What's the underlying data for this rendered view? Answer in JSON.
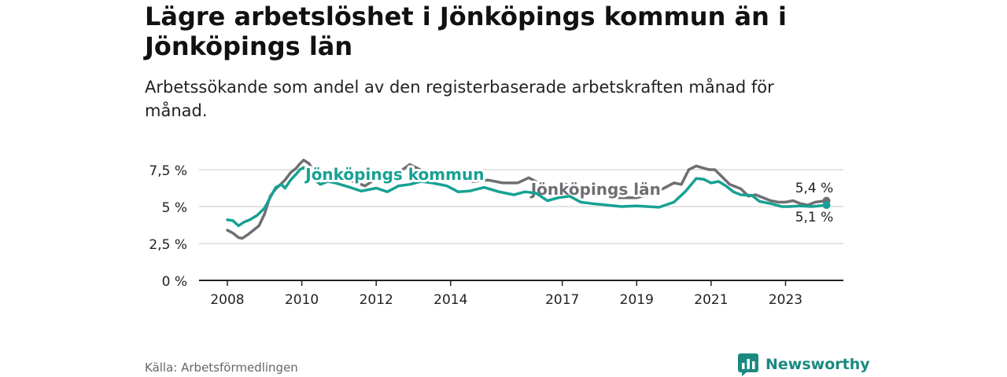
{
  "title": "Lägre arbetslöshet i Jönköpings kommun än i Jönköpings län",
  "subtitle": "Arbetssökande som andel av den registerbaserade arbetskraften månad för månad.",
  "source": "Källa: Arbetsförmedlingen",
  "brand": {
    "name": "Newsworthy",
    "icon": "newsworthy-logo-icon",
    "color": "#1a8a80"
  },
  "chart_data": {
    "type": "line",
    "title": "Lägre arbetslöshet i Jönköpings kommun än i Jönköpings län",
    "xlabel": "",
    "ylabel": "",
    "xlim": [
      2008,
      2024.7
    ],
    "ylim": [
      0,
      7.5
    ],
    "y_ticks": [
      0,
      2.5,
      5,
      7.5
    ],
    "y_tick_labels": [
      "0 %",
      "2,5 %",
      "5 %",
      "7,5 %"
    ],
    "x_ticks": [
      2008,
      2010,
      2012,
      2014,
      2017,
      2019,
      2021,
      2023
    ],
    "x_tick_labels": [
      "2008",
      "2010",
      "2012",
      "2014",
      "2017",
      "2019",
      "2021",
      "2023"
    ],
    "grid": true,
    "series": [
      {
        "name": "Jönköpings län",
        "color": "#6f6f73",
        "label_position": [
          2017.9,
          5.8
        ],
        "points": [
          [
            2008.0,
            3.4
          ],
          [
            2008.15,
            3.2
          ],
          [
            2008.3,
            2.9
          ],
          [
            2008.4,
            2.85
          ],
          [
            2008.55,
            3.1
          ],
          [
            2008.7,
            3.4
          ],
          [
            2008.85,
            3.7
          ],
          [
            2009.0,
            4.5
          ],
          [
            2009.15,
            5.7
          ],
          [
            2009.3,
            6.2
          ],
          [
            2009.45,
            6.55
          ],
          [
            2009.55,
            6.8
          ],
          [
            2009.7,
            7.3
          ],
          [
            2009.85,
            7.6
          ],
          [
            2009.95,
            7.9
          ],
          [
            2010.05,
            8.15
          ],
          [
            2010.2,
            7.9
          ],
          [
            2010.35,
            7.2
          ],
          [
            2010.5,
            6.8
          ],
          [
            2010.6,
            7.2
          ],
          [
            2010.75,
            7.0
          ],
          [
            2010.9,
            6.8
          ],
          [
            2011.1,
            6.9
          ],
          [
            2011.4,
            6.7
          ],
          [
            2011.7,
            6.4
          ],
          [
            2012.0,
            6.9
          ],
          [
            2012.3,
            7.0
          ],
          [
            2012.6,
            7.3
          ],
          [
            2012.9,
            7.85
          ],
          [
            2013.1,
            7.6
          ],
          [
            2013.4,
            7.2
          ],
          [
            2013.7,
            7.2
          ],
          [
            2014.0,
            7.4
          ],
          [
            2014.3,
            6.9
          ],
          [
            2014.6,
            6.7
          ],
          [
            2015.0,
            6.8
          ],
          [
            2015.4,
            6.6
          ],
          [
            2015.8,
            6.6
          ],
          [
            2016.1,
            6.95
          ],
          [
            2016.4,
            6.55
          ],
          [
            2016.6,
            6.0
          ],
          [
            2016.8,
            6.3
          ],
          [
            2017.0,
            6.6
          ],
          [
            2017.3,
            6.3
          ],
          [
            2017.6,
            6.1
          ],
          [
            2018.0,
            5.9
          ],
          [
            2018.5,
            5.6
          ],
          [
            2019.0,
            5.6
          ],
          [
            2019.4,
            5.85
          ],
          [
            2019.7,
            6.2
          ],
          [
            2020.0,
            6.6
          ],
          [
            2020.2,
            6.5
          ],
          [
            2020.4,
            7.5
          ],
          [
            2020.6,
            7.75
          ],
          [
            2020.8,
            7.6
          ],
          [
            2020.95,
            7.5
          ],
          [
            2021.1,
            7.5
          ],
          [
            2021.3,
            7.0
          ],
          [
            2021.5,
            6.5
          ],
          [
            2021.8,
            6.2
          ],
          [
            2022.0,
            5.7
          ],
          [
            2022.2,
            5.8
          ],
          [
            2022.4,
            5.6
          ],
          [
            2022.6,
            5.4
          ],
          [
            2022.8,
            5.3
          ],
          [
            2023.0,
            5.3
          ],
          [
            2023.2,
            5.4
          ],
          [
            2023.4,
            5.2
          ],
          [
            2023.6,
            5.1
          ],
          [
            2023.8,
            5.3
          ],
          [
            2024.1,
            5.4
          ]
        ],
        "end_label": "5,4 %"
      },
      {
        "name": "Jönköpings kommun",
        "color": "#17a193",
        "label_position": [
          2012.5,
          6.8
        ],
        "points": [
          [
            2008.0,
            4.1
          ],
          [
            2008.15,
            4.05
          ],
          [
            2008.3,
            3.7
          ],
          [
            2008.45,
            3.95
          ],
          [
            2008.6,
            4.1
          ],
          [
            2008.8,
            4.4
          ],
          [
            2009.0,
            4.9
          ],
          [
            2009.15,
            5.6
          ],
          [
            2009.3,
            6.3
          ],
          [
            2009.45,
            6.5
          ],
          [
            2009.55,
            6.25
          ],
          [
            2009.7,
            6.8
          ],
          [
            2009.85,
            7.2
          ],
          [
            2009.95,
            7.5
          ],
          [
            2010.05,
            7.65
          ],
          [
            2010.2,
            7.4
          ],
          [
            2010.35,
            6.8
          ],
          [
            2010.5,
            6.5
          ],
          [
            2010.7,
            6.7
          ],
          [
            2010.9,
            6.6
          ],
          [
            2011.3,
            6.3
          ],
          [
            2011.6,
            6.05
          ],
          [
            2012.0,
            6.25
          ],
          [
            2012.3,
            6.0
          ],
          [
            2012.6,
            6.4
          ],
          [
            2012.9,
            6.5
          ],
          [
            2013.2,
            6.7
          ],
          [
            2013.5,
            6.6
          ],
          [
            2013.9,
            6.4
          ],
          [
            2014.2,
            6.0
          ],
          [
            2014.5,
            6.05
          ],
          [
            2014.9,
            6.3
          ],
          [
            2015.3,
            6.0
          ],
          [
            2015.7,
            5.8
          ],
          [
            2016.0,
            6.0
          ],
          [
            2016.3,
            5.9
          ],
          [
            2016.6,
            5.4
          ],
          [
            2016.9,
            5.6
          ],
          [
            2017.2,
            5.7
          ],
          [
            2017.5,
            5.3
          ],
          [
            2017.8,
            5.2
          ],
          [
            2018.2,
            5.1
          ],
          [
            2018.6,
            5.0
          ],
          [
            2019.0,
            5.05
          ],
          [
            2019.3,
            5.0
          ],
          [
            2019.6,
            4.95
          ],
          [
            2020.0,
            5.3
          ],
          [
            2020.3,
            6.0
          ],
          [
            2020.6,
            6.9
          ],
          [
            2020.8,
            6.85
          ],
          [
            2021.0,
            6.6
          ],
          [
            2021.2,
            6.7
          ],
          [
            2021.4,
            6.4
          ],
          [
            2021.6,
            6.0
          ],
          [
            2021.8,
            5.8
          ],
          [
            2022.1,
            5.75
          ],
          [
            2022.3,
            5.35
          ],
          [
            2022.6,
            5.2
          ],
          [
            2022.9,
            5.0
          ],
          [
            2023.1,
            5.0
          ],
          [
            2023.4,
            5.05
          ],
          [
            2023.7,
            5.0
          ],
          [
            2023.9,
            5.05
          ],
          [
            2024.1,
            5.1
          ]
        ],
        "end_label": "5,1 %"
      }
    ]
  }
}
